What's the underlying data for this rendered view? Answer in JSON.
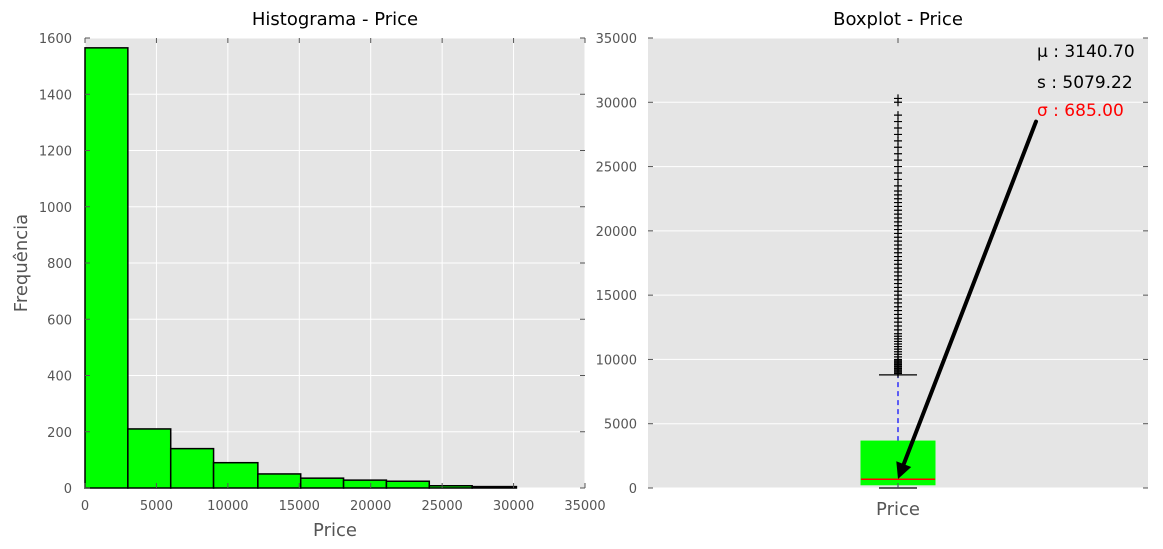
{
  "colors": {
    "panel_bg": "#e5e5e5",
    "grid": "#ffffff",
    "bar_fill": "#00ff00",
    "bar_edge": "#000000",
    "median": "#ff0000",
    "whisker": "#0000ff",
    "sigma_text": "#ff0000"
  },
  "chart_data": [
    {
      "type": "bar",
      "title": "Histograma - Price",
      "xlabel": "Price",
      "ylabel": "Frequência",
      "xlim": [
        0,
        35000
      ],
      "ylim": [
        0,
        1600
      ],
      "xticks": [
        0,
        5000,
        10000,
        15000,
        20000,
        25000,
        30000,
        35000
      ],
      "yticks": [
        0,
        200,
        400,
        600,
        800,
        1000,
        1200,
        1400,
        1600
      ],
      "grid": true,
      "bins": [
        {
          "start": 0,
          "end": 3000,
          "value": 1565
        },
        {
          "start": 3000,
          "end": 6000,
          "value": 210
        },
        {
          "start": 6000,
          "end": 9000,
          "value": 140
        },
        {
          "start": 9000,
          "end": 12100,
          "value": 90
        },
        {
          "start": 12100,
          "end": 15100,
          "value": 50
        },
        {
          "start": 15100,
          "end": 18100,
          "value": 35
        },
        {
          "start": 18100,
          "end": 21100,
          "value": 28
        },
        {
          "start": 21100,
          "end": 24100,
          "value": 24
        },
        {
          "start": 24100,
          "end": 27100,
          "value": 8
        },
        {
          "start": 27100,
          "end": 30200,
          "value": 5
        }
      ]
    },
    {
      "type": "box",
      "title": "Boxplot - Price",
      "category": "Price",
      "ylim": [
        0,
        35000
      ],
      "yticks": [
        0,
        5000,
        10000,
        15000,
        20000,
        25000,
        30000,
        35000
      ],
      "grid": true,
      "box": {
        "q1": 250,
        "median": 685,
        "q3": 3650,
        "whisker_low": 0,
        "whisker_high": 8800
      },
      "outliers": [
        8900,
        9000,
        9100,
        9200,
        9300,
        9400,
        9500,
        9600,
        9700,
        9800,
        9900,
        10000,
        10200,
        10400,
        10600,
        10800,
        11000,
        11200,
        11400,
        11600,
        11800,
        12000,
        12300,
        12600,
        12900,
        13200,
        13500,
        13800,
        14100,
        14400,
        14700,
        15000,
        15300,
        15600,
        15900,
        16200,
        16500,
        16800,
        17100,
        17400,
        17700,
        18000,
        18300,
        18600,
        18900,
        19200,
        19500,
        19800,
        20100,
        20400,
        20700,
        21000,
        21300,
        21600,
        21900,
        22200,
        22500,
        22800,
        23100,
        23500,
        24000,
        24500,
        25000,
        25500,
        26000,
        26500,
        27000,
        27500,
        28000,
        28500,
        29000,
        30000,
        30300
      ],
      "annotations": {
        "mu": "μ : 3140.70",
        "s": "s : 5079.22",
        "sigma": "σ : 685.00",
        "arrow_from": [
          30100,
          28500
        ],
        "arrow_to": [
          0,
          700
        ]
      }
    }
  ]
}
